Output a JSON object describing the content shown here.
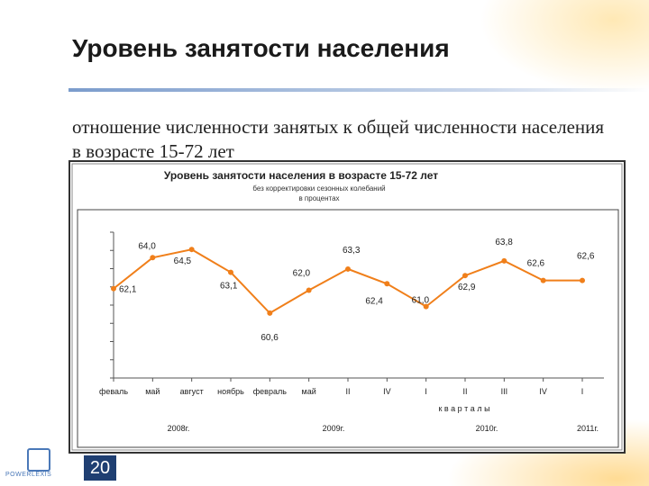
{
  "slide": {
    "title": "Уровень занятости населения",
    "subtitle": "отношение численности занятых к общей численности населения в возрасте 15-72 лет",
    "page_number": "20",
    "logo_text": "POWERLEXIS"
  },
  "chart_data": {
    "type": "line",
    "title": "Уровень занятости населения в возрасте 15-72 лет",
    "subtitle_lines": [
      "без корректировки сезонных колебаний",
      "в процентах"
    ],
    "categories": [
      "феваль",
      "май",
      "август",
      "ноябрь",
      "февраль",
      "май",
      "II",
      "IV",
      "I",
      "II",
      "III",
      "IV",
      "I"
    ],
    "series": [
      {
        "values": [
          62.1,
          64.0,
          64.5,
          63.1,
          60.6,
          62.0,
          63.3,
          62.4,
          61.0,
          62.9,
          63.8,
          62.6,
          62.6
        ],
        "labels": [
          "62,1",
          "64,0",
          "64,5",
          "63,1",
          "60,6",
          "62,0",
          "63,3",
          "62,4",
          "61,0",
          "62,9",
          "63,8",
          "62,6",
          "62,6"
        ],
        "color": "#f07f1a"
      }
    ],
    "quarters_label": "к в а р т а л ы",
    "year_labels": [
      "2008г.",
      "2009г.",
      "2010г.",
      "2011г."
    ],
    "ylim": [
      58,
      66
    ],
    "grid": false,
    "legend": "none"
  }
}
